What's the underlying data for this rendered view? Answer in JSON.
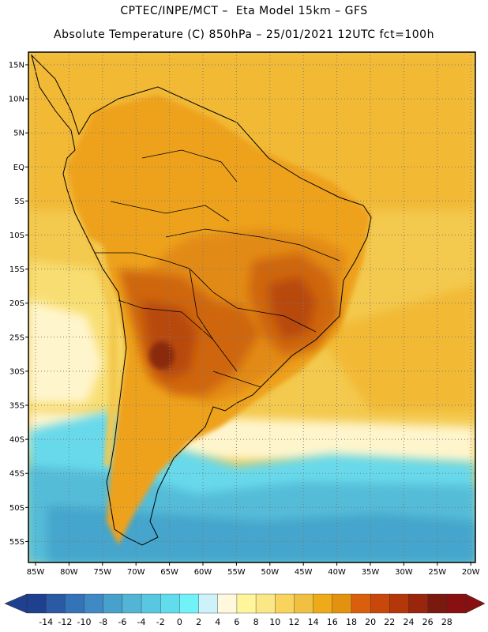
{
  "title_line1": "CPTEC/INPE/MCT –  Eta Model 15km – GFS",
  "title_line2": "Absolute Temperature (C) 850hPa – 25/01/2021 12UTC fct=100h",
  "lat_labels": [
    "15N",
    "10N",
    "5N",
    "EQ",
    "5S",
    "10S",
    "15S",
    "20S",
    "25S",
    "30S",
    "35S",
    "40S",
    "45S",
    "50S",
    "55S"
  ],
  "lon_labels": [
    "85W",
    "80W",
    "75W",
    "70W",
    "65W",
    "60W",
    "55W",
    "50W",
    "45W",
    "40W",
    "35W",
    "30W",
    "25W",
    "20W"
  ],
  "colorbar": {
    "labels": [
      "-14",
      "-12",
      "-10",
      "-8",
      "-6",
      "-4",
      "-2",
      "0",
      "2",
      "4",
      "6",
      "8",
      "10",
      "12",
      "14",
      "16",
      "18",
      "20",
      "22",
      "24",
      "26",
      "28"
    ],
    "colors": [
      "#1f3f8f",
      "#2a5aa4",
      "#3573b8",
      "#3f89c4",
      "#48a0cc",
      "#52b5d6",
      "#58c8e0",
      "#60dcec",
      "#70f2f8",
      "#cdf2fa",
      "#fff8dc",
      "#fff59a",
      "#fbe785",
      "#f8d45c",
      "#f1c040",
      "#eeaa18",
      "#e39210",
      "#d95f0c",
      "#c8480a",
      "#b4370a",
      "#98250c",
      "#7a1a0e",
      "#881010"
    ]
  },
  "map_colors": {
    "ocean_warm": "#f2b936",
    "ocean_mid": "#f3c94e",
    "ocean_cool": "#f8de72",
    "pale": "#fff5cc",
    "cyan": "#67d9eb",
    "lightblue": "#55bcd8",
    "blue": "#44a5cc",
    "land": "#eea21a",
    "land_warm": "#e28a14",
    "land_hot": "#cf660e",
    "land_hotter": "#b84a0c",
    "hot_core": "#8a2a0d",
    "andes": "#f4c84e",
    "grid": "#7a7a7a"
  }
}
